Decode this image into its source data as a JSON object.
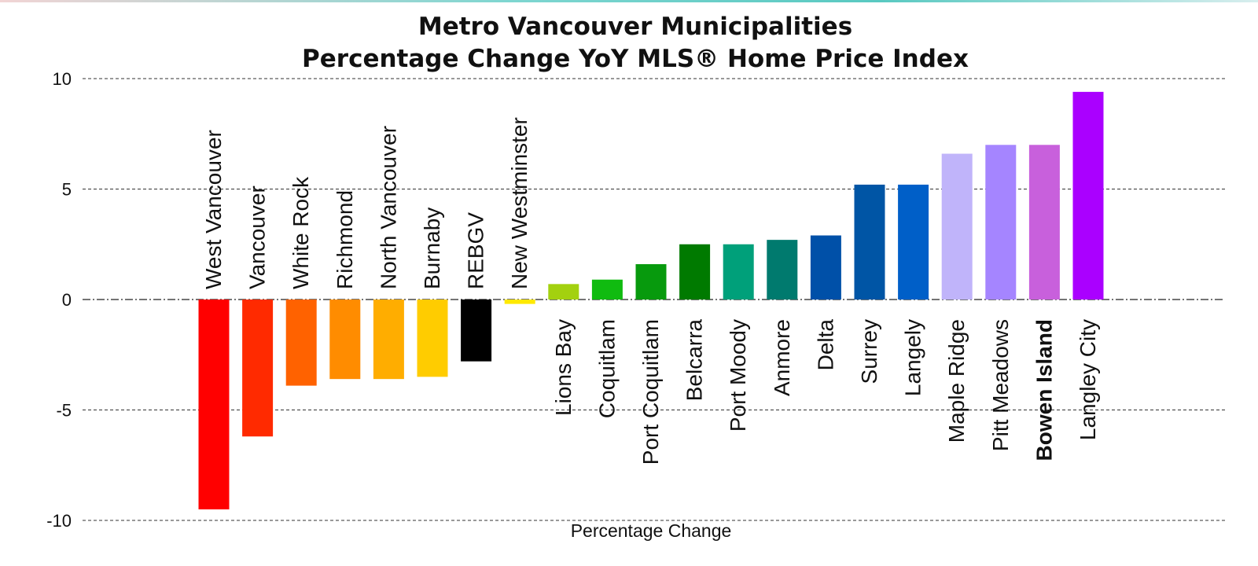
{
  "chart_data": {
    "type": "bar",
    "title": [
      "Metro Vancouver Municipalities",
      "Percentage Change YoY MLS® Home Price Index"
    ],
    "xlabel": "Percentage Change",
    "ylabel": "",
    "ylim": [
      -10,
      10
    ],
    "yticks": [
      10,
      5,
      0,
      -5,
      -10
    ],
    "grid": true,
    "categories": [
      "West Vancouver",
      "Vancouver",
      "White Rock",
      "Richmond",
      "North Vancouver",
      "Burnaby",
      "REBGV",
      "New Westminster",
      "Lions Bay",
      "Coquitlam",
      "Port Coquitlam",
      "Belcarra",
      "Port Moody",
      "Anmore",
      "Delta",
      "Surrey",
      "Langely",
      "Maple Ridge",
      "Pitt Meadows",
      "Bowen Island",
      "Langley City"
    ],
    "values": [
      -9.5,
      -6.2,
      -3.9,
      -3.6,
      -3.6,
      -3.5,
      -2.8,
      -0.2,
      0.7,
      0.9,
      1.6,
      2.5,
      2.5,
      2.7,
      2.9,
      5.2,
      5.2,
      6.6,
      7.0,
      7.0,
      9.4
    ],
    "colors": [
      "#ff0000",
      "#ff2a00",
      "#ff6200",
      "#ff8c00",
      "#ffad00",
      "#ffcc00",
      "#000000",
      "#ffe900",
      "#a3d10f",
      "#10bb10",
      "#079a0d",
      "#007a00",
      "#00a07a",
      "#007a6e",
      "#0050a8",
      "#0055a5",
      "#005fc8",
      "#c0b4fa",
      "#a585ff",
      "#c860dc",
      "#aa00ff"
    ],
    "bold_labels": [
      "Bowen Island"
    ]
  }
}
